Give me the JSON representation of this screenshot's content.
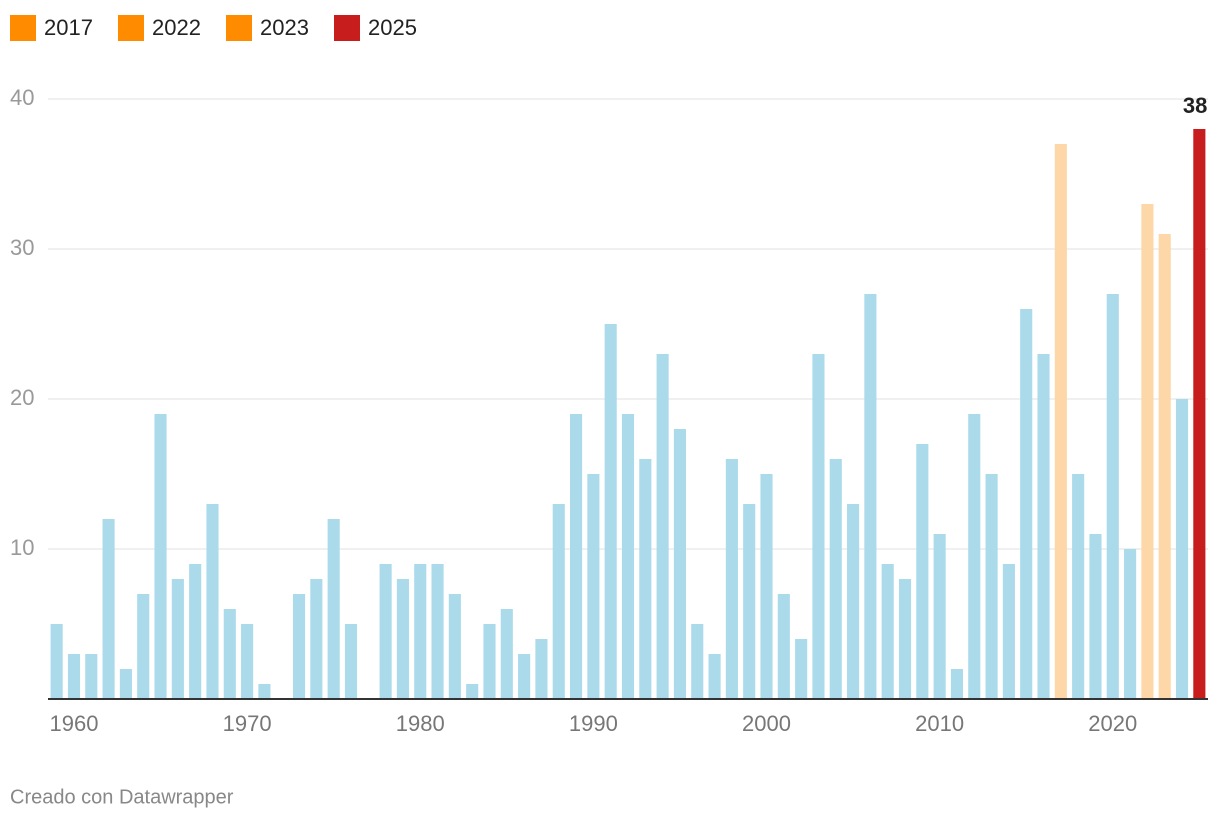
{
  "chart_data": {
    "type": "bar",
    "x": [
      1959,
      1960,
      1961,
      1962,
      1963,
      1964,
      1965,
      1966,
      1967,
      1968,
      1969,
      1970,
      1971,
      1972,
      1973,
      1974,
      1975,
      1976,
      1977,
      1978,
      1979,
      1980,
      1981,
      1982,
      1983,
      1984,
      1985,
      1986,
      1987,
      1988,
      1989,
      1990,
      1991,
      1992,
      1993,
      1994,
      1995,
      1996,
      1997,
      1998,
      1999,
      2000,
      2001,
      2002,
      2003,
      2004,
      2005,
      2006,
      2007,
      2008,
      2009,
      2010,
      2011,
      2012,
      2013,
      2014,
      2015,
      2016,
      2017,
      2018,
      2019,
      2020,
      2021,
      2022,
      2023,
      2024,
      2025
    ],
    "values": [
      5,
      3,
      3,
      12,
      2,
      7,
      19,
      8,
      9,
      13,
      6,
      5,
      1,
      0,
      7,
      8,
      12,
      5,
      0,
      9,
      8,
      9,
      9,
      7,
      1,
      5,
      6,
      3,
      4,
      13,
      19,
      15,
      25,
      19,
      16,
      23,
      18,
      5,
      3,
      16,
      13,
      15,
      7,
      4,
      23,
      16,
      13,
      27,
      9,
      8,
      17,
      11,
      2,
      19,
      15,
      9,
      26,
      23,
      37,
      15,
      11,
      27,
      10,
      33,
      31,
      20,
      38
    ],
    "color": "#abdbeb",
    "legend": [
      {
        "name": "2017",
        "color": "#ff8b00",
        "bar_color": "#fdd7a7"
      },
      {
        "name": "2022",
        "color": "#ff8b00",
        "bar_color": "#fdd7a7"
      },
      {
        "name": "2023",
        "color": "#ff8b00",
        "bar_color": "#fdd7a7"
      },
      {
        "name": "2025",
        "color": "#c71e1d",
        "bar_color": "#c71e1d"
      }
    ],
    "label_last": true,
    "xlim": [
      1958.5,
      2025.5
    ],
    "xticks": [
      1960,
      1970,
      1980,
      1990,
      2000,
      2010,
      2020
    ],
    "ylim": [
      0,
      40
    ],
    "yticks": [
      10,
      20,
      30,
      40
    ],
    "grid": true,
    "footer": "Creado con Datawrapper"
  }
}
